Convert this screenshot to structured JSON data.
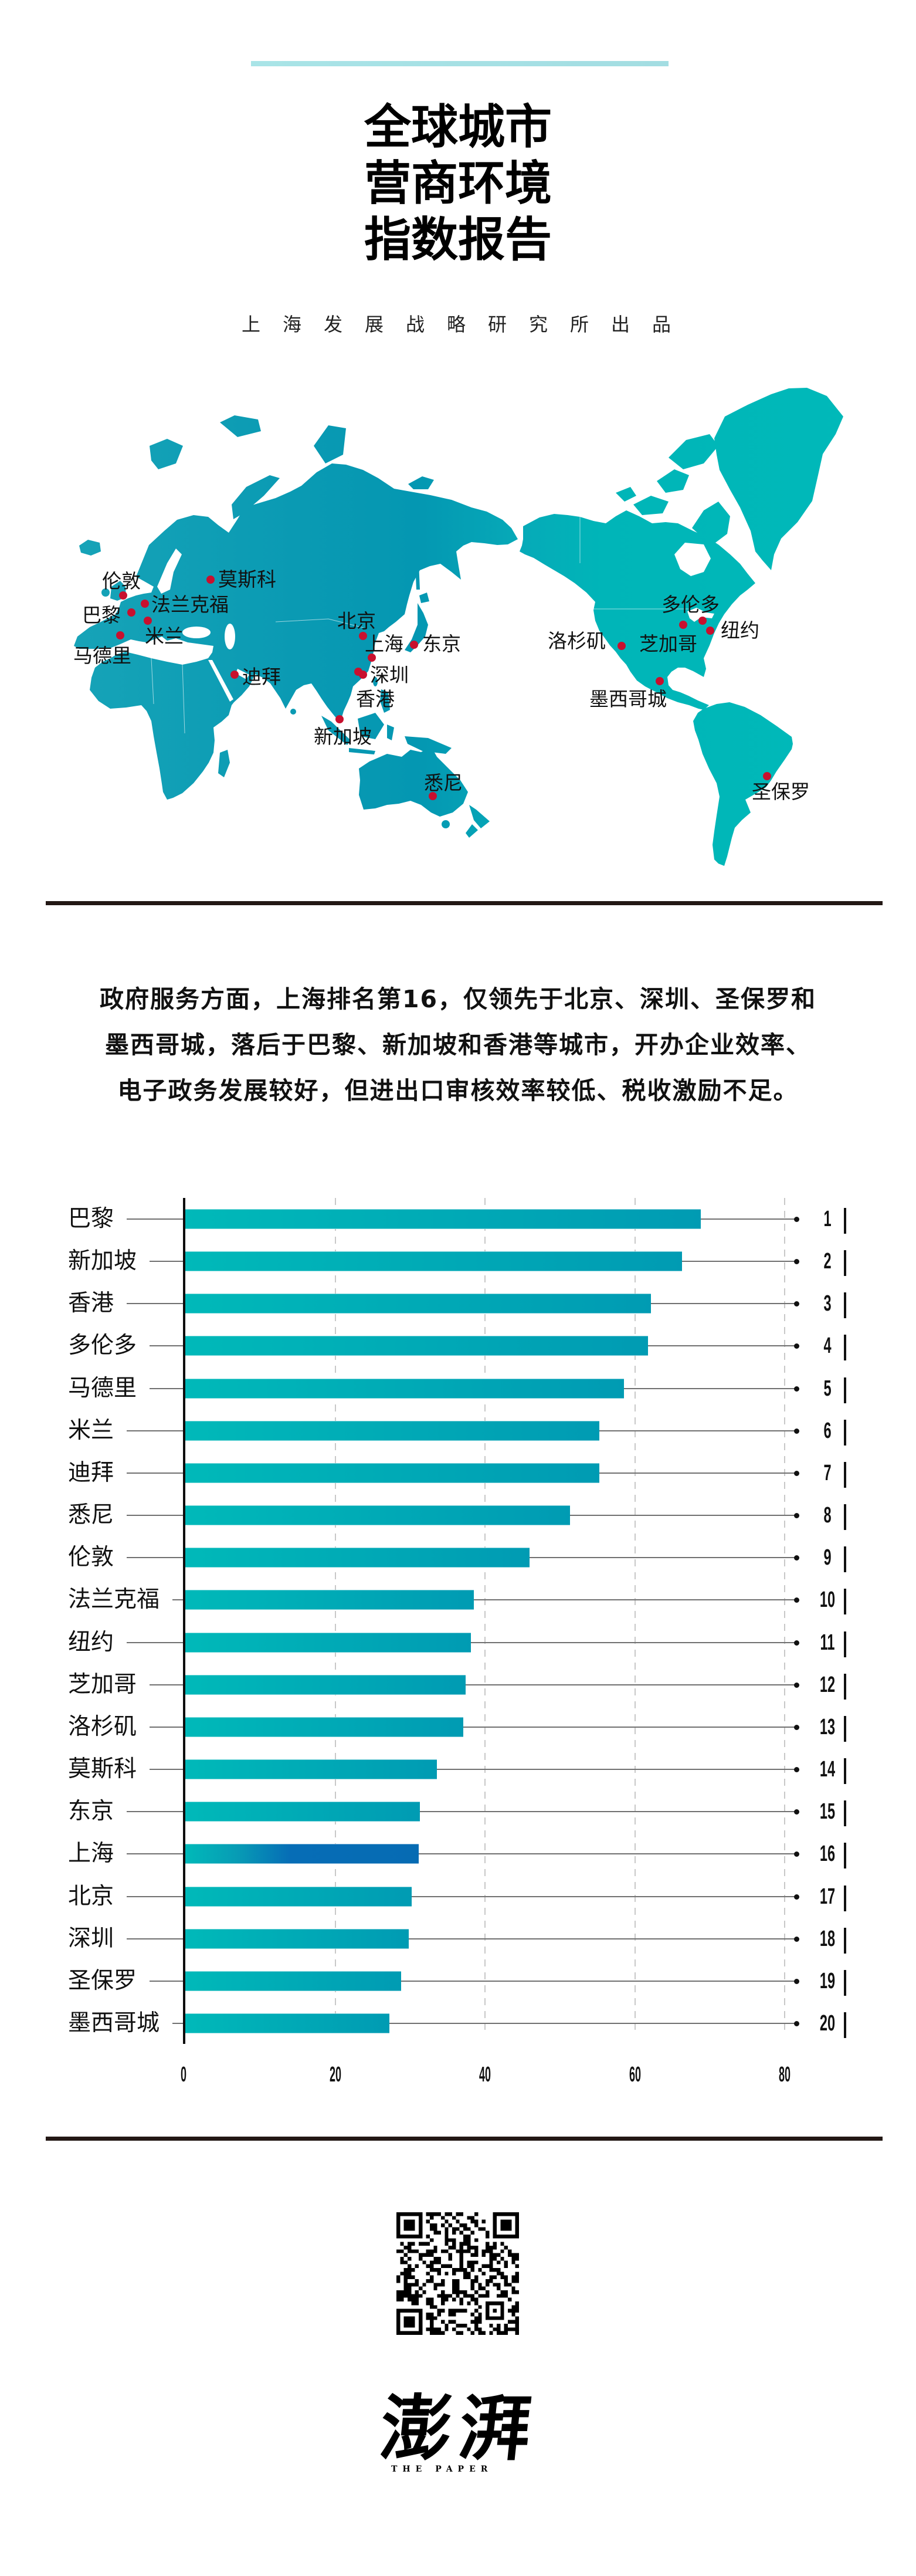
{
  "header": {
    "title_lines": [
      "全球城市",
      "营商环境",
      "指数报告"
    ],
    "subtitle": "上海发展战略研究所出品"
  },
  "map": {
    "cities": [
      "伦敦",
      "法兰克福",
      "巴黎",
      "米兰",
      "马德里",
      "莫斯科",
      "迪拜",
      "北京",
      "上海",
      "东京",
      "深圳",
      "香港",
      "新加坡",
      "悉尼",
      "多伦多",
      "芝加哥",
      "纽约",
      "洛杉矶",
      "墨西哥城",
      "圣保罗"
    ]
  },
  "summary": {
    "lines": [
      "政府服务方面，上海排名第16，仅领先于北京、深圳、圣保罗和",
      "墨西哥城，落后于巴黎、新加坡和香港等城市，开办企业效率、",
      "电子政务发展较好，但进出口审核效率较低、税收激励不足。"
    ]
  },
  "chart_data": {
    "type": "bar",
    "orientation": "horizontal",
    "title": "",
    "xlabel": "",
    "ylabel": "",
    "categories": [
      "巴黎",
      "新加坡",
      "香港",
      "多伦多",
      "马德里",
      "米兰",
      "迪拜",
      "悉尼",
      "伦敦",
      "法兰克福",
      "纽约",
      "芝加哥",
      "洛杉矶",
      "莫斯科",
      "东京",
      "上海",
      "北京",
      "深圳",
      "圣保罗",
      "墨西哥城"
    ],
    "values": [
      68.8,
      66.3,
      62.1,
      61.7,
      58.5,
      55.2,
      55.2,
      51.3,
      45.9,
      38.5,
      38.1,
      37.4,
      37.1,
      33.6,
      31.3,
      31.1,
      30.2,
      29.8,
      28.8,
      27.2
    ],
    "ranks": [
      "1",
      "2",
      "3",
      "4",
      "5",
      "6",
      "7",
      "8",
      "9",
      "10",
      "11",
      "12",
      "13",
      "14",
      "15",
      "16",
      "17",
      "18",
      "19",
      "20"
    ],
    "xlim": [
      0,
      80
    ],
    "xticks": [
      0,
      20,
      40,
      60,
      80
    ],
    "grid": "vertical dashed",
    "legend": "none",
    "highlight": "上海"
  },
  "footer": {
    "logo_cn": "澎湃",
    "logo_en": "THE PAPER"
  },
  "colors": {
    "accent_bar": "#a6e2e5",
    "bar_start": "#00b9b9",
    "bar_end": "#009bb3",
    "highlight_bar": "#066db6",
    "city_marker": "#c8102e",
    "map_land": "#0aa3b7",
    "rule": "#231815"
  }
}
